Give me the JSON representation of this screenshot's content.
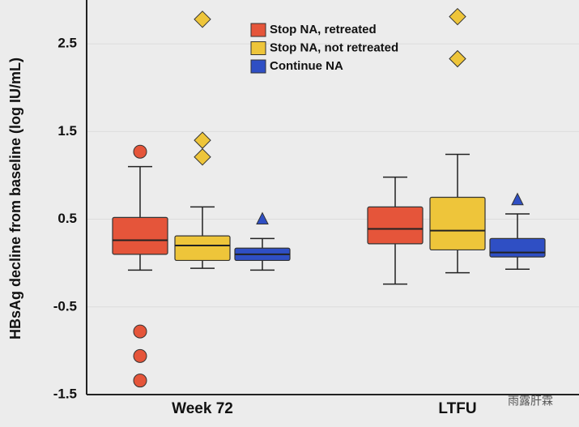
{
  "chart_data": {
    "type": "box",
    "y_label": "HBsAg decline from baseline (log IU/mL)",
    "categories": [
      "Week 72",
      "LTFU"
    ],
    "ylim": [
      -1.5,
      3.0
    ],
    "yticks": [
      2.5,
      1.5,
      0.5,
      -0.5,
      -1.5
    ],
    "grid": true,
    "legend_position": "top",
    "series": [
      {
        "name": "Stop NA, retreated",
        "color": "#e5553a",
        "marker": "circle",
        "boxes": [
          {
            "whisker_low": -0.08,
            "q1": 0.1,
            "median": 0.26,
            "q3": 0.52,
            "whisker_high": 1.1
          },
          {
            "whisker_low": -0.24,
            "q1": 0.22,
            "median": 0.39,
            "q3": 0.64,
            "whisker_high": 0.98
          }
        ],
        "outliers": [
          [
            1.27,
            -0.78,
            -1.06,
            -1.34
          ],
          []
        ]
      },
      {
        "name": "Stop NA, not retreated",
        "color": "#eec53a",
        "marker": "diamond",
        "boxes": [
          {
            "whisker_low": -0.06,
            "q1": 0.03,
            "median": 0.2,
            "q3": 0.31,
            "whisker_high": 0.64
          },
          {
            "whisker_low": -0.11,
            "q1": 0.15,
            "median": 0.37,
            "q3": 0.75,
            "whisker_high": 1.24
          }
        ],
        "outliers": [
          [
            2.78,
            1.4,
            1.21
          ],
          [
            2.81,
            2.33
          ]
        ]
      },
      {
        "name": "Continue NA",
        "color": "#2f4fc4",
        "marker": "triangle",
        "boxes": [
          {
            "whisker_low": -0.08,
            "q1": 0.03,
            "median": 0.1,
            "q3": 0.17,
            "whisker_high": 0.28
          },
          {
            "whisker_low": -0.07,
            "q1": 0.07,
            "median": 0.12,
            "q3": 0.28,
            "whisker_high": 0.56
          }
        ],
        "outliers": [
          [
            0.5
          ],
          [
            0.72
          ]
        ]
      }
    ]
  },
  "watermark": "雨露肝霖"
}
